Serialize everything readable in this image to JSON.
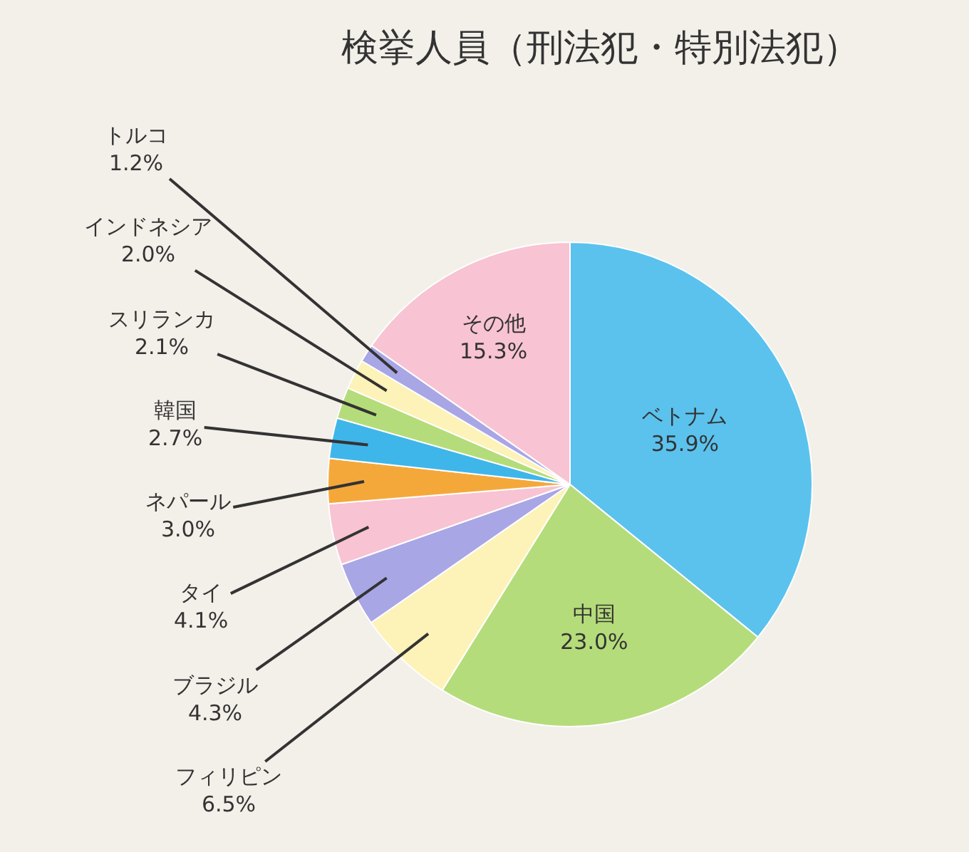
{
  "chart_data": {
    "type": "pie",
    "title": "検挙人員（刑法犯・特別法犯）",
    "categories": [
      "ベトナム",
      "中国",
      "フィリピン",
      "ブラジル",
      "タイ",
      "ネパール",
      "韓国",
      "スリランカ",
      "インドネシア",
      "トルコ",
      "その他"
    ],
    "values": [
      35.9,
      23.0,
      6.5,
      4.3,
      4.1,
      3.0,
      2.7,
      2.1,
      2.0,
      1.2,
      15.3
    ],
    "colors": [
      "#5bc2ee",
      "#b5dc7a",
      "#fdf2b8",
      "#a9a6e6",
      "#f8c3d3",
      "#f5a83a",
      "#3fb6ea",
      "#b5dc7a",
      "#fdf2b8",
      "#a9a6e6",
      "#f8c3d3"
    ],
    "value_labels": [
      "35.9%",
      "23.0%",
      "6.5%",
      "4.3%",
      "4.1%",
      "3.0%",
      "2.7%",
      "2.1%",
      "2.0%",
      "1.2%",
      "15.3%"
    ],
    "legend": false
  }
}
